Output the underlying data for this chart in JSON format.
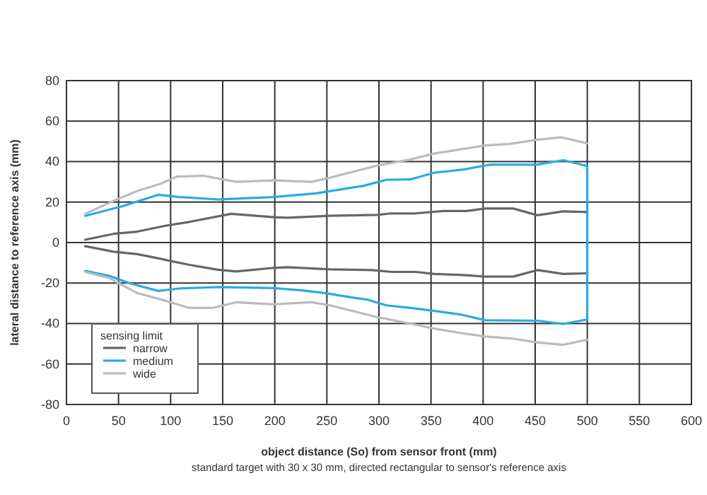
{
  "chart_data": {
    "type": "line",
    "xlabel": "object distance (So) from sensor front (mm)",
    "ylabel": "lateral distance to reference axis (mm)",
    "legend_title": "sensing limit",
    "annotations": [
      "standard target with 30 x 30 mm, directed rectangular to sensor's reference axis"
    ],
    "xlim": [
      0,
      600
    ],
    "xticks": [
      0,
      50,
      100,
      150,
      200,
      250,
      300,
      350,
      400,
      450,
      500,
      550,
      600
    ],
    "ylim": [
      -80,
      80
    ],
    "yticks": [
      -80,
      -60,
      -40,
      -20,
      0,
      20,
      40,
      60,
      80
    ],
    "grid": true,
    "legend": "bottom left",
    "line_style": "solid",
    "marker": "none",
    "series": [
      {
        "name": "narrow",
        "color": "#666666",
        "x": [
          18,
          45,
          68,
          95,
          118,
          158,
          199,
          212,
          253,
          298,
          312,
          335,
          362,
          384,
          402,
          429,
          452,
          477,
          500
        ],
        "values": [
          1.4,
          4.3,
          5.4,
          8.3,
          10.2,
          14.2,
          12.5,
          12.3,
          13.2,
          13.7,
          14.4,
          14.4,
          15.6,
          15.6,
          16.8,
          16.8,
          13.5,
          15.4,
          15.1
        ]
      },
      {
        "color": "#666666",
        "x": [
          18,
          45,
          68,
          90,
          118,
          145,
          163,
          199,
          212,
          253,
          293,
          312,
          335,
          353,
          380,
          402,
          429,
          452,
          477,
          500
        ],
        "values": [
          -1.8,
          -4.5,
          -5.7,
          -8,
          -11,
          -13.4,
          -14.3,
          -12.5,
          -12.2,
          -13.2,
          -13.6,
          -14.5,
          -14.5,
          -15.5,
          -16,
          -16.8,
          -16.8,
          -13.6,
          -15.5,
          -15.2
        ]
      },
      {
        "name": "medium",
        "color": "#29abe2",
        "x": [
          18,
          54,
          88,
          108,
          145,
          199,
          240,
          285,
          307,
          330,
          353,
          380,
          407,
          452,
          477,
          500,
          500,
          477,
          452,
          402,
          380,
          357,
          330,
          307,
          289,
          276,
          249,
          226,
          199,
          145,
          108,
          88,
          59,
          41,
          18
        ],
        "values": [
          13.2,
          18,
          23.6,
          22.5,
          21.3,
          22.5,
          24.3,
          28,
          31,
          31.2,
          34.5,
          36,
          38.5,
          38.5,
          40.7,
          37.8,
          -38,
          -40.2,
          -38.6,
          -38.4,
          -35.7,
          -34,
          -32.3,
          -31,
          -28.2,
          -27.3,
          -25,
          -23.6,
          -22.5,
          -22,
          -22.7,
          -23.9,
          -19.8,
          -16.4,
          -14
        ]
      },
      {
        "name": "wide",
        "color": "#bbbbbb",
        "x": [
          18,
          47,
          68,
          90,
          106,
          131,
          163,
          199,
          235,
          253,
          298,
          330,
          353,
          402,
          425,
          452,
          475,
          500
        ],
        "values": [
          14.2,
          21,
          25.5,
          29,
          32.6,
          33,
          30,
          30.7,
          30,
          32,
          38,
          41,
          44,
          48,
          48.7,
          50.8,
          52,
          49
        ]
      },
      {
        "color": "#bbbbbb",
        "x": [
          18,
          41,
          68,
          90,
          118,
          140,
          163,
          199,
          235,
          253,
          298,
          330,
          353,
          380,
          402,
          429,
          452,
          477,
          500
        ],
        "values": [
          -14.5,
          -17.5,
          -25,
          -28,
          -32.3,
          -32.3,
          -29.5,
          -30.5,
          -29.5,
          -31,
          -36.8,
          -40,
          -42.5,
          -44.8,
          -46.4,
          -47.5,
          -49.3,
          -50.5,
          -48
        ]
      }
    ]
  }
}
